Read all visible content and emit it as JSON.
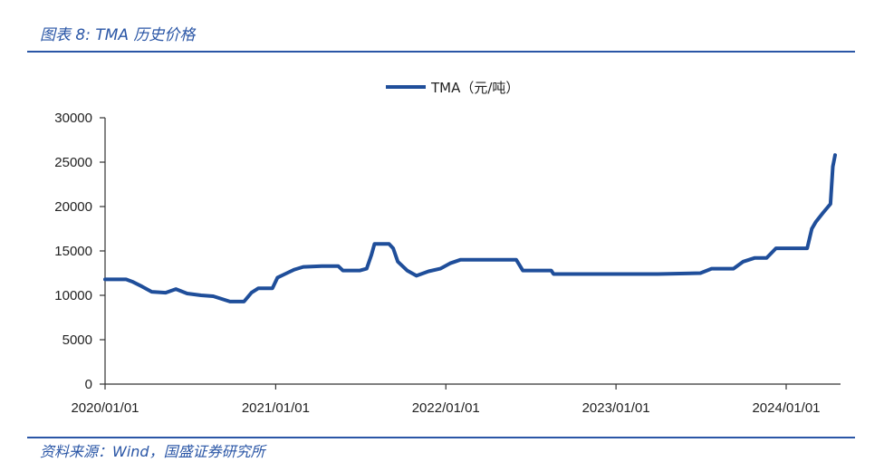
{
  "header": {
    "figure_title": "图表 8:  TMA 历史价格"
  },
  "footer": {
    "source": "资料来源：Wind，国盛证券研究所"
  },
  "chart_data": {
    "type": "line",
    "x_tick_labels": [
      "2020/01/01",
      "2021/01/01",
      "2022/01/01",
      "2023/01/01",
      "2024/01/01"
    ],
    "y_tick_labels": [
      "0",
      "5000",
      "10000",
      "15000",
      "20000",
      "25000",
      "30000"
    ],
    "ylim": [
      0,
      30000
    ],
    "grid": false,
    "legend_position": "top-center",
    "series": [
      {
        "name": "TMA（元/吨）",
        "color": "#1f4e9a",
        "points": [
          [
            "2020-01-01",
            11800
          ],
          [
            "2020-02-15",
            11800
          ],
          [
            "2020-03-01",
            11500
          ],
          [
            "2020-03-20",
            11000
          ],
          [
            "2020-04-10",
            10400
          ],
          [
            "2020-05-10",
            10300
          ],
          [
            "2020-06-01",
            10700
          ],
          [
            "2020-06-25",
            10200
          ],
          [
            "2020-07-25",
            10000
          ],
          [
            "2020-08-20",
            9900
          ],
          [
            "2020-09-25",
            9300
          ],
          [
            "2020-10-25",
            9300
          ],
          [
            "2020-11-10",
            10300
          ],
          [
            "2020-11-25",
            10800
          ],
          [
            "2020-12-25",
            10800
          ],
          [
            "2021-01-05",
            12000
          ],
          [
            "2021-01-25",
            12500
          ],
          [
            "2021-02-10",
            12900
          ],
          [
            "2021-03-01",
            13200
          ],
          [
            "2021-04-10",
            13300
          ],
          [
            "2021-05-15",
            13300
          ],
          [
            "2021-05-25",
            12800
          ],
          [
            "2021-07-01",
            12800
          ],
          [
            "2021-07-15",
            13000
          ],
          [
            "2021-07-25",
            14500
          ],
          [
            "2021-08-01",
            15800
          ],
          [
            "2021-09-01",
            15800
          ],
          [
            "2021-09-10",
            15300
          ],
          [
            "2021-09-20",
            13800
          ],
          [
            "2021-10-10",
            12800
          ],
          [
            "2021-10-30",
            12200
          ],
          [
            "2021-11-25",
            12700
          ],
          [
            "2021-12-20",
            13000
          ],
          [
            "2022-01-10",
            13600
          ],
          [
            "2022-02-01",
            14000
          ],
          [
            "2022-03-15",
            14000
          ],
          [
            "2022-05-01",
            14000
          ],
          [
            "2022-06-01",
            14000
          ],
          [
            "2022-06-15",
            12800
          ],
          [
            "2022-08-15",
            12800
          ],
          [
            "2022-08-20",
            12400
          ],
          [
            "2022-10-15",
            12400
          ],
          [
            "2023-02-01",
            12400
          ],
          [
            "2023-04-01",
            12400
          ],
          [
            "2023-07-01",
            12500
          ],
          [
            "2023-07-25",
            13000
          ],
          [
            "2023-09-10",
            13000
          ],
          [
            "2023-10-01",
            13800
          ],
          [
            "2023-10-25",
            14200
          ],
          [
            "2023-11-20",
            14200
          ],
          [
            "2023-12-10",
            15300
          ],
          [
            "2024-01-20",
            15300
          ],
          [
            "2024-02-15",
            15300
          ],
          [
            "2024-02-25",
            17500
          ],
          [
            "2024-03-05",
            18300
          ],
          [
            "2024-03-20",
            19300
          ],
          [
            "2024-04-05",
            20300
          ],
          [
            "2024-04-10",
            24500
          ],
          [
            "2024-04-15",
            25800
          ]
        ]
      }
    ]
  }
}
